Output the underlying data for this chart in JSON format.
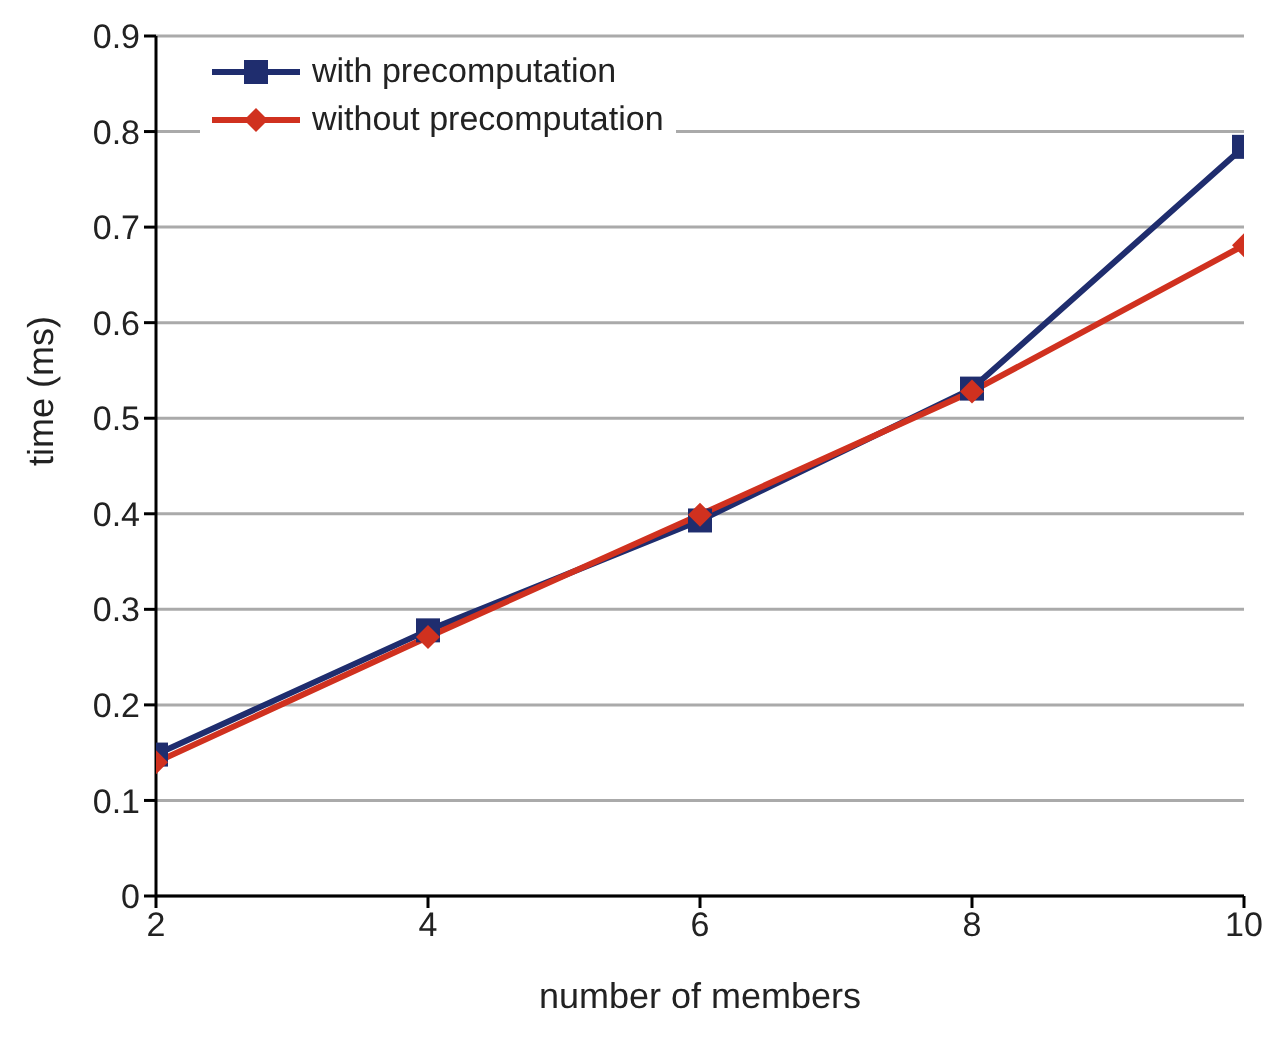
{
  "chart_data": {
    "type": "line",
    "xlabel": "number of members",
    "ylabel": "time (ms)",
    "x": [
      2,
      4,
      6,
      8,
      10
    ],
    "series": [
      {
        "name": "with precomputation",
        "color": "#1f2d6e",
        "marker": "square",
        "values": [
          0.148,
          0.278,
          0.393,
          0.531,
          0.784
        ]
      },
      {
        "name": "without precomputation",
        "color": "#d0311f",
        "marker": "diamond",
        "values": [
          0.14,
          0.271,
          0.399,
          0.528,
          0.681
        ]
      }
    ],
    "xlim": [
      2,
      10
    ],
    "xticks": [
      2,
      4,
      6,
      8,
      10
    ],
    "ylim": [
      0,
      0.9
    ],
    "yticks": [
      0,
      0.1,
      0.2,
      0.3,
      0.4,
      0.5,
      0.6,
      0.7,
      0.8,
      0.9
    ],
    "grid": "y",
    "legend": "top left",
    "line_style": "solid"
  }
}
